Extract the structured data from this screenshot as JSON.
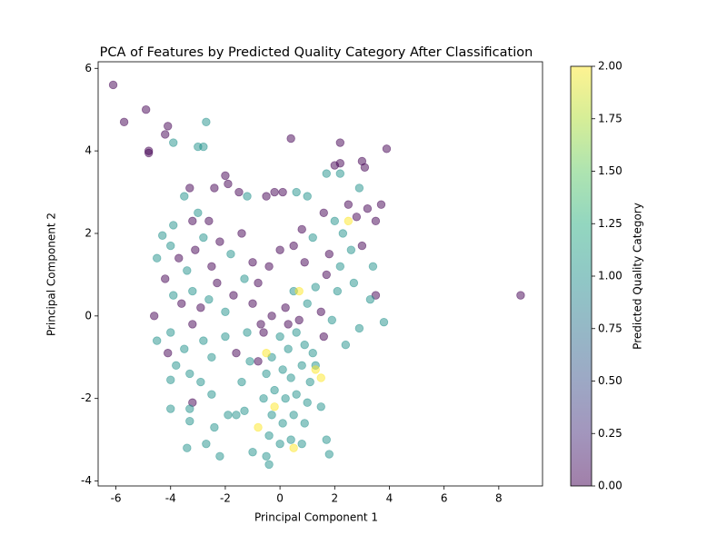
{
  "chart_data": {
    "type": "scatter",
    "title": "PCA of Features by Predicted Quality Category After Classification",
    "xlabel": "Principal Component 1",
    "ylabel": "Principal Component 2",
    "colorbar_label": "Predicted Quality Category",
    "xlim": [
      -6.65,
      9.6
    ],
    "ylim": [
      -4.12,
      6.16
    ],
    "xticks": [
      -6,
      -4,
      -2,
      0,
      2,
      4,
      6,
      8
    ],
    "yticks": [
      -4,
      -2,
      0,
      2,
      4,
      6
    ],
    "clim": [
      0,
      2
    ],
    "cticks": [
      {
        "value": 0,
        "label": "0.00"
      },
      {
        "value": 0.25,
        "label": "0.25"
      },
      {
        "value": 0.5,
        "label": "0.50"
      },
      {
        "value": 0.75,
        "label": "0.75"
      },
      {
        "value": 1,
        "label": "1.00"
      },
      {
        "value": 1.25,
        "label": "1.25"
      },
      {
        "value": 1.5,
        "label": "1.50"
      },
      {
        "value": 1.75,
        "label": "1.75"
      },
      {
        "value": 2,
        "label": "2.00"
      }
    ],
    "x": [
      -6.1,
      -5.7,
      -4.9,
      -4.8,
      -4.8,
      -4.1,
      -4.2,
      -3.9,
      -2.7,
      -3.0,
      -2.8,
      0.4,
      2.2,
      3.9,
      3.0,
      3.1,
      8.8,
      2.0,
      2.2,
      1.7,
      2.2,
      -3.5,
      -3.3,
      -3.2,
      -3.0,
      -2.6,
      -2.4,
      -2.0,
      -1.9,
      -1.5,
      -1.2,
      -3.9,
      -4.3,
      -4.0,
      -3.7,
      -3.4,
      -3.1,
      -2.8,
      -2.5,
      -2.2,
      -1.8,
      -1.4,
      -1.0,
      -4.5,
      -4.2,
      -3.9,
      -3.6,
      -3.2,
      -2.9,
      -2.6,
      -2.3,
      -2.0,
      -1.7,
      -1.3,
      -4.6,
      -4.0,
      -3.5,
      -3.2,
      -2.8,
      -2.5,
      -2.0,
      -1.6,
      -1.2,
      -4.1,
      -3.8,
      -3.3,
      -2.9,
      -2.5,
      -3.2,
      -4.0,
      -4.0,
      -3.3,
      -3.3,
      -2.7,
      -3.4,
      -2.2,
      -2.4,
      -1.6,
      -1.9,
      -1.3,
      -1.4,
      -1.1,
      -4.5,
      0.6,
      1.0,
      0.1,
      -0.2,
      -0.5,
      0.8,
      1.2,
      1.6,
      2.0,
      2.3,
      2.5,
      2.8,
      3.2,
      3.7,
      3.5,
      2.9,
      1.8,
      2.2,
      2.6,
      3.0,
      3.4,
      3.5,
      3.3,
      2.7,
      2.1,
      1.7,
      1.3,
      0.9,
      0.5,
      0.0,
      -0.4,
      -0.8,
      3.8,
      2.9,
      2.4,
      1.9,
      1.5,
      1.0,
      0.5,
      0.2,
      -0.3,
      -0.7,
      -1.0,
      0.0,
      0.3,
      0.6,
      0.9,
      1.2,
      -0.3,
      0.1,
      0.4,
      0.8,
      1.1,
      -0.5,
      -0.2,
      0.2,
      0.6,
      1.0,
      -0.6,
      -0.3,
      0.1,
      0.5,
      0.9,
      -0.4,
      0.0,
      0.4,
      0.8,
      -0.5,
      -0.4,
      1.7,
      1.8,
      -1.0,
      1.5,
      1.3,
      -0.8,
      0.7,
      1.6,
      -0.6,
      0.3,
      0.5,
      -0.2,
      1.5,
      -0.8,
      0.7,
      2.5,
      -0.5,
      1.3
    ],
    "y": [
      5.6,
      4.7,
      5.0,
      3.95,
      4.0,
      4.6,
      4.4,
      4.2,
      4.7,
      4.1,
      4.1,
      4.3,
      4.2,
      4.05,
      3.75,
      3.6,
      0.5,
      3.65,
      3.7,
      3.45,
      3.45,
      2.9,
      3.1,
      2.3,
      2.5,
      2.3,
      3.1,
      3.4,
      3.2,
      3.0,
      2.9,
      2.2,
      1.95,
      1.7,
      1.4,
      1.1,
      1.6,
      1.9,
      1.2,
      1.8,
      1.5,
      2.0,
      1.3,
      1.4,
      0.9,
      0.5,
      0.3,
      0.6,
      0.2,
      0.4,
      0.8,
      0.1,
      0.5,
      0.9,
      0.0,
      -0.4,
      -0.8,
      -0.2,
      -0.6,
      -1.0,
      -0.5,
      -0.9,
      -0.4,
      -0.9,
      -1.2,
      -1.4,
      -1.6,
      -1.9,
      -2.1,
      -1.55,
      -2.25,
      -2.25,
      -2.55,
      -3.1,
      -3.2,
      -3.4,
      -2.7,
      -2.4,
      -2.4,
      -2.3,
      -1.6,
      -1.1,
      -0.6,
      3.0,
      2.9,
      3.0,
      3.0,
      2.9,
      2.1,
      1.9,
      2.5,
      2.3,
      2.0,
      2.7,
      2.4,
      2.6,
      2.7,
      2.3,
      3.1,
      1.5,
      1.2,
      1.6,
      1.7,
      1.2,
      0.5,
      0.4,
      0.8,
      0.6,
      1.0,
      0.7,
      1.3,
      1.7,
      1.6,
      1.2,
      0.8,
      -0.15,
      -0.3,
      -0.7,
      -0.1,
      0.1,
      0.3,
      0.6,
      0.2,
      0.0,
      -0.2,
      0.3,
      -0.5,
      -0.8,
      -0.4,
      -0.7,
      -0.9,
      -1.0,
      -1.3,
      -1.5,
      -1.2,
      -1.6,
      -1.4,
      -1.8,
      -2.0,
      -1.9,
      -2.1,
      -2.0,
      -2.4,
      -2.6,
      -2.4,
      -2.6,
      -2.9,
      -3.1,
      -3.0,
      -3.1,
      -3.4,
      -3.6,
      -3.0,
      -3.35,
      -3.3,
      -2.2,
      -1.2,
      -1.1,
      -0.1,
      -0.5,
      -0.4,
      -0.2,
      -3.2,
      -2.2,
      -1.5,
      -2.7,
      0.6,
      2.3,
      -0.9,
      -1.3
    ],
    "c": [
      0,
      0,
      0,
      0,
      0,
      0,
      0,
      1,
      1,
      1,
      1,
      0,
      0,
      0,
      0,
      0,
      0,
      0,
      0,
      1,
      1,
      1,
      0,
      0,
      1,
      0,
      0,
      0,
      0,
      0,
      1,
      1,
      1,
      1,
      0,
      1,
      0,
      1,
      0,
      0,
      1,
      0,
      0,
      1,
      0,
      1,
      0,
      1,
      0,
      1,
      0,
      1,
      0,
      1,
      0,
      1,
      1,
      0,
      1,
      1,
      1,
      0,
      1,
      0,
      1,
      1,
      1,
      1,
      0,
      1,
      1,
      1,
      1,
      1,
      1,
      1,
      1,
      1,
      1,
      1,
      1,
      1,
      1,
      1,
      1,
      0,
      0,
      0,
      0,
      1,
      0,
      1,
      1,
      0,
      0,
      0,
      0,
      0,
      1,
      0,
      1,
      1,
      0,
      1,
      0,
      1,
      1,
      1,
      0,
      1,
      0,
      0,
      0,
      0,
      0,
      1,
      1,
      1,
      1,
      0,
      1,
      1,
      0,
      0,
      0,
      0,
      1,
      1,
      1,
      1,
      1,
      1,
      1,
      1,
      1,
      1,
      1,
      1,
      1,
      1,
      1,
      1,
      1,
      1,
      1,
      1,
      1,
      1,
      1,
      1,
      1,
      1,
      1,
      1,
      1,
      1,
      1,
      0,
      0,
      0,
      0,
      0,
      2,
      2,
      2,
      2,
      2,
      2,
      2,
      2
    ]
  }
}
